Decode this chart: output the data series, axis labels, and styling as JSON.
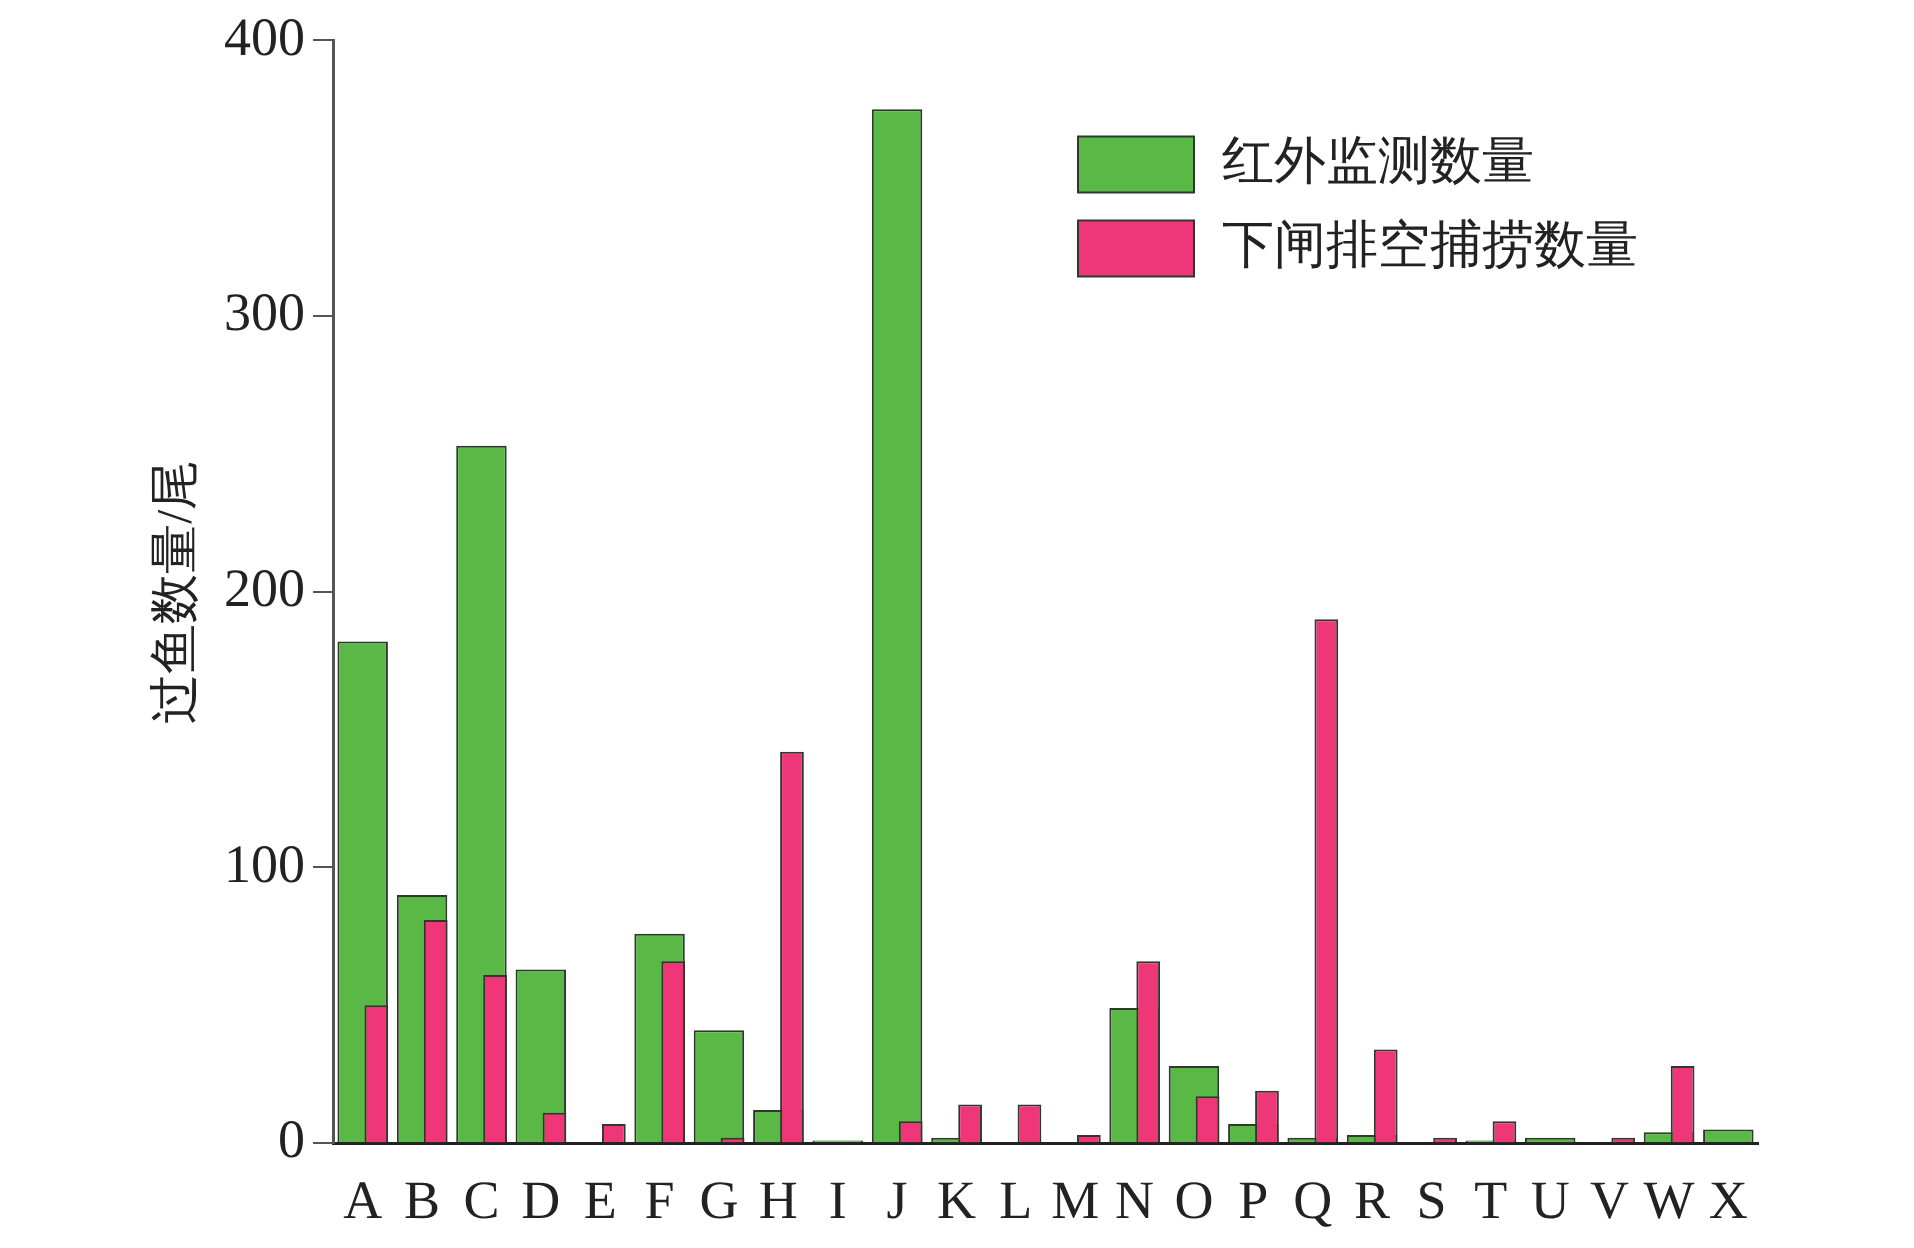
{
  "chart_data": {
    "type": "bar",
    "ylabel": "过鱼数量/尾",
    "categories": [
      "A",
      "B",
      "C",
      "D",
      "E",
      "F",
      "G",
      "H",
      "I",
      "J",
      "K",
      "L",
      "M",
      "N",
      "O",
      "P",
      "Q",
      "R",
      "S",
      "T",
      "U",
      "V",
      "W",
      "X"
    ],
    "series": [
      {
        "name": "红外监测数量",
        "color": "#5ab946",
        "values": [
          182,
          90,
          253,
          63,
          0,
          76,
          41,
          12,
          1,
          375,
          2,
          0,
          0,
          49,
          28,
          7,
          2,
          3,
          0,
          1,
          2,
          0,
          4,
          5
        ]
      },
      {
        "name": "下闸排空捕捞数量",
        "color": "#ee3678",
        "values": [
          50,
          81,
          61,
          11,
          7,
          66,
          2,
          142,
          0,
          8,
          14,
          14,
          3,
          66,
          17,
          19,
          190,
          34,
          2,
          8,
          0,
          2,
          28,
          0
        ]
      }
    ],
    "ylim": [
      0,
      400
    ],
    "yticks": [
      0,
      100,
      200,
      300,
      400
    ],
    "grid": false,
    "legend": "top right"
  }
}
